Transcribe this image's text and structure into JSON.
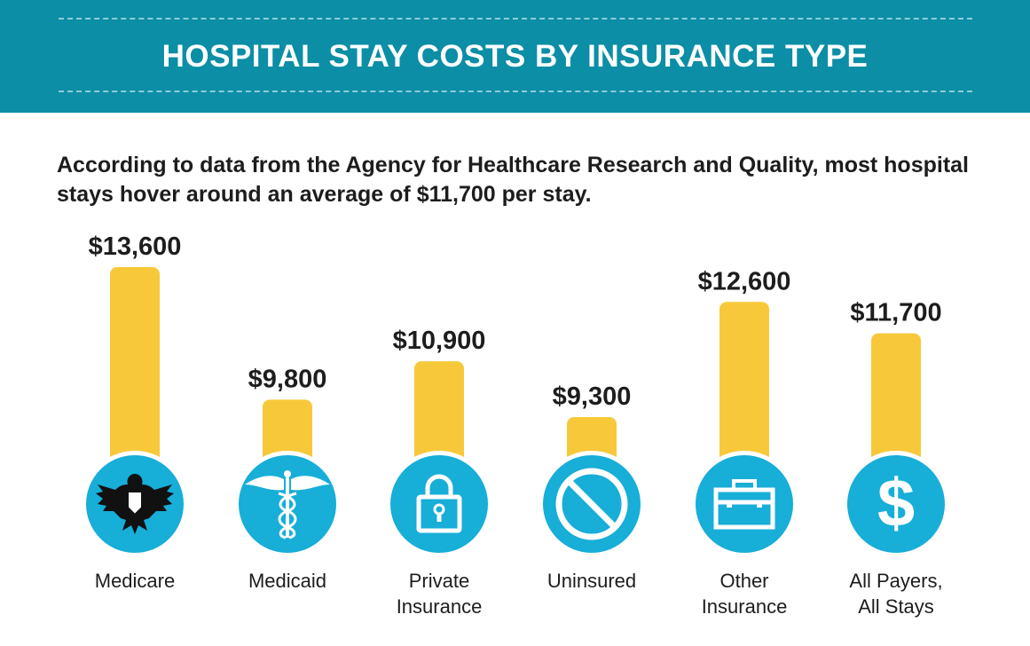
{
  "header": {
    "title": "HOSPITAL STAY COSTS BY INSURANCE TYPE"
  },
  "intro": {
    "text": "According to data from the Agency for Healthcare Research and Quality, most hospital stays hover around an average of $11,700 per stay."
  },
  "colors": {
    "banner": "#0b8ea6",
    "bar": "#f7c93a",
    "icon_circle": "#17aed8",
    "text": "#1d1d1d"
  },
  "chart_data": {
    "type": "bar",
    "categories": [
      "Medicare",
      "Medicaid",
      "Private Insurance",
      "Uninsured",
      "Other Insurance",
      "All Payers, All Stays"
    ],
    "label_lines": [
      [
        "Medicare"
      ],
      [
        "Medicaid"
      ],
      [
        "Private",
        "Insurance"
      ],
      [
        "Uninsured"
      ],
      [
        "Other",
        "Insurance"
      ],
      [
        "All Payers,",
        "All Stays"
      ]
    ],
    "values": [
      13600,
      9800,
      10900,
      9300,
      12600,
      11700
    ],
    "value_labels": [
      "$13,600",
      "$9,800",
      "$10,900",
      "$9,300",
      "$12,600",
      "$11,700"
    ],
    "icons": [
      "eagle-icon",
      "caduceus-icon",
      "padlock-icon",
      "prohibited-icon",
      "briefcase-icon",
      "dollar-sign-icon"
    ],
    "title": "",
    "xlabel": "",
    "ylabel": "",
    "grid": false,
    "legend": "none"
  }
}
